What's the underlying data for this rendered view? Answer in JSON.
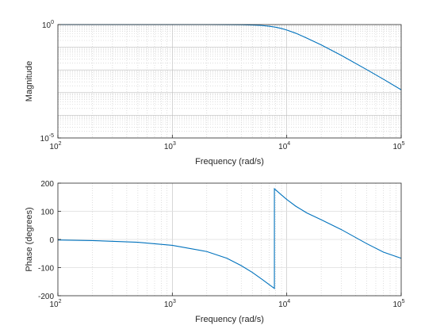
{
  "chart_data": [
    {
      "type": "line",
      "id": "magnitude",
      "xlabel": "Frequency (rad/s)",
      "ylabel": "Magnitude",
      "xscale": "log",
      "yscale": "log",
      "xlim": [
        100,
        100000
      ],
      "ylim": [
        1e-05,
        1
      ],
      "xticks": [
        {
          "base": "10",
          "exp": "2"
        },
        {
          "base": "10",
          "exp": "3"
        },
        {
          "base": "10",
          "exp": "4"
        },
        {
          "base": "10",
          "exp": "5"
        }
      ],
      "yticks": [
        {
          "base": "10",
          "exp": "-5"
        },
        {
          "base": "10",
          "exp": "0"
        }
      ],
      "grid": true,
      "series": [
        {
          "color": "#0072BD",
          "x": [
            100,
            200,
            500,
            1000,
            2000,
            3000,
            4000,
            5000,
            6000,
            7000,
            8000,
            9000,
            10000,
            12000,
            15000,
            20000,
            30000,
            50000,
            70000,
            100000
          ],
          "y": [
            1,
            1,
            1,
            1,
            0.999,
            0.994,
            0.982,
            0.957,
            0.913,
            0.85,
            0.767,
            0.672,
            0.576,
            0.415,
            0.253,
            0.127,
            0.0436,
            0.0103,
            0.00389,
            0.00133
          ]
        }
      ]
    },
    {
      "type": "line",
      "id": "phase",
      "xlabel": "Frequency (rad/s)",
      "ylabel": "Phase (degrees)",
      "xscale": "log",
      "yscale": "linear",
      "xlim": [
        100,
        100000
      ],
      "ylim": [
        -200,
        200
      ],
      "xticks": [
        {
          "base": "10",
          "exp": "2"
        },
        {
          "base": "10",
          "exp": "3"
        },
        {
          "base": "10",
          "exp": "4"
        },
        {
          "base": "10",
          "exp": "5"
        }
      ],
      "yticks": [
        "-200",
        "-100",
        "0",
        "100",
        "200"
      ],
      "grid": true,
      "series": [
        {
          "color": "#0072BD",
          "x": [
            100,
            200,
            500,
            1000,
            2000,
            3000,
            4000,
            5000,
            6000,
            7000,
            7800,
            7800,
            9000,
            10000,
            12000,
            15000,
            20000,
            30000,
            50000,
            70000,
            100000
          ],
          "y": [
            -2,
            -4,
            -10,
            -21,
            -43,
            -67,
            -93,
            -117,
            -140,
            -160,
            -174,
            180,
            158,
            142,
            118,
            94,
            70,
            35,
            -15,
            -45,
            -67
          ]
        }
      ]
    }
  ]
}
